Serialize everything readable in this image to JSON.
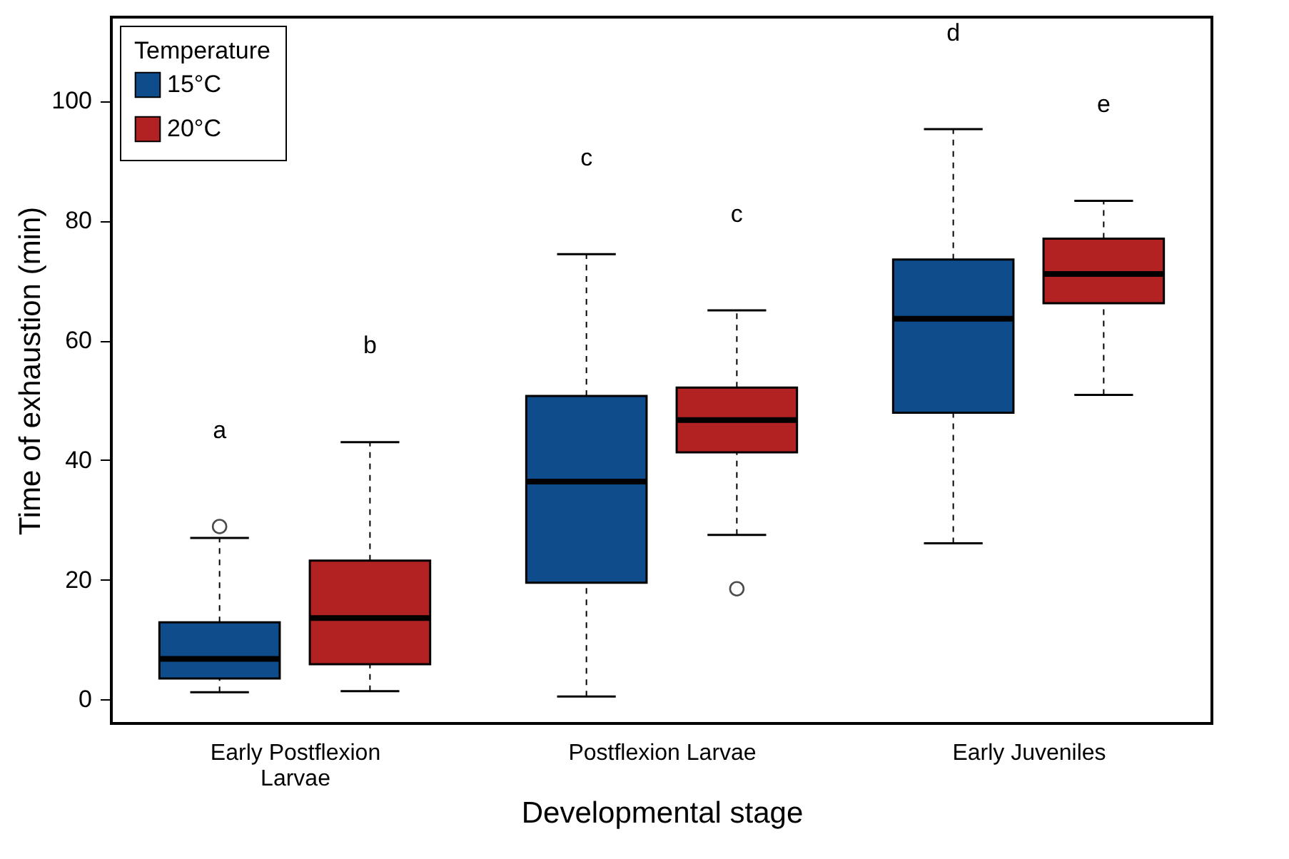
{
  "chart_data": {
    "type": "box",
    "xlabel": "Developmental stage",
    "ylabel": "Time of exhaustion (min)",
    "legend_title": "Temperature",
    "legend": "top left",
    "categories": [
      "Early Postflexion Larvae",
      "Postflexion Larvae",
      "Early Juveniles"
    ],
    "ylim": [
      -4,
      114
    ],
    "yticks": [
      0,
      20,
      40,
      60,
      80,
      100
    ],
    "grid": false,
    "series": [
      {
        "name": "15°C",
        "color": "#0f4c8c",
        "boxes": [
          {
            "low": 1.2,
            "q1": 3.5,
            "median": 6.8,
            "q3": 12.9,
            "high": 27,
            "outliers": [
              28.9
            ]
          },
          {
            "low": 0.5,
            "q1": 19.5,
            "median": 36.4,
            "q3": 50.7,
            "high": 74.4
          },
          {
            "low": 26.1,
            "q1": 47.9,
            "median": 63.6,
            "q3": 73.5,
            "high": 95.3
          }
        ]
      },
      {
        "name": "20°C",
        "color": "#b22222",
        "boxes": [
          {
            "low": 1.4,
            "q1": 5.9,
            "median": 13.6,
            "q3": 23.2,
            "high": 43
          },
          {
            "low": 27.5,
            "q1": 41.3,
            "median": 46.7,
            "q3": 52.1,
            "high": 65,
            "outliers": [
              18.5
            ]
          },
          {
            "low": 50.9,
            "q1": 66.2,
            "median": 71.1,
            "q3": 77,
            "high": 83.3
          }
        ]
      }
    ],
    "annotations": [
      "a",
      "b",
      "c",
      "c",
      "d",
      "e"
    ]
  }
}
